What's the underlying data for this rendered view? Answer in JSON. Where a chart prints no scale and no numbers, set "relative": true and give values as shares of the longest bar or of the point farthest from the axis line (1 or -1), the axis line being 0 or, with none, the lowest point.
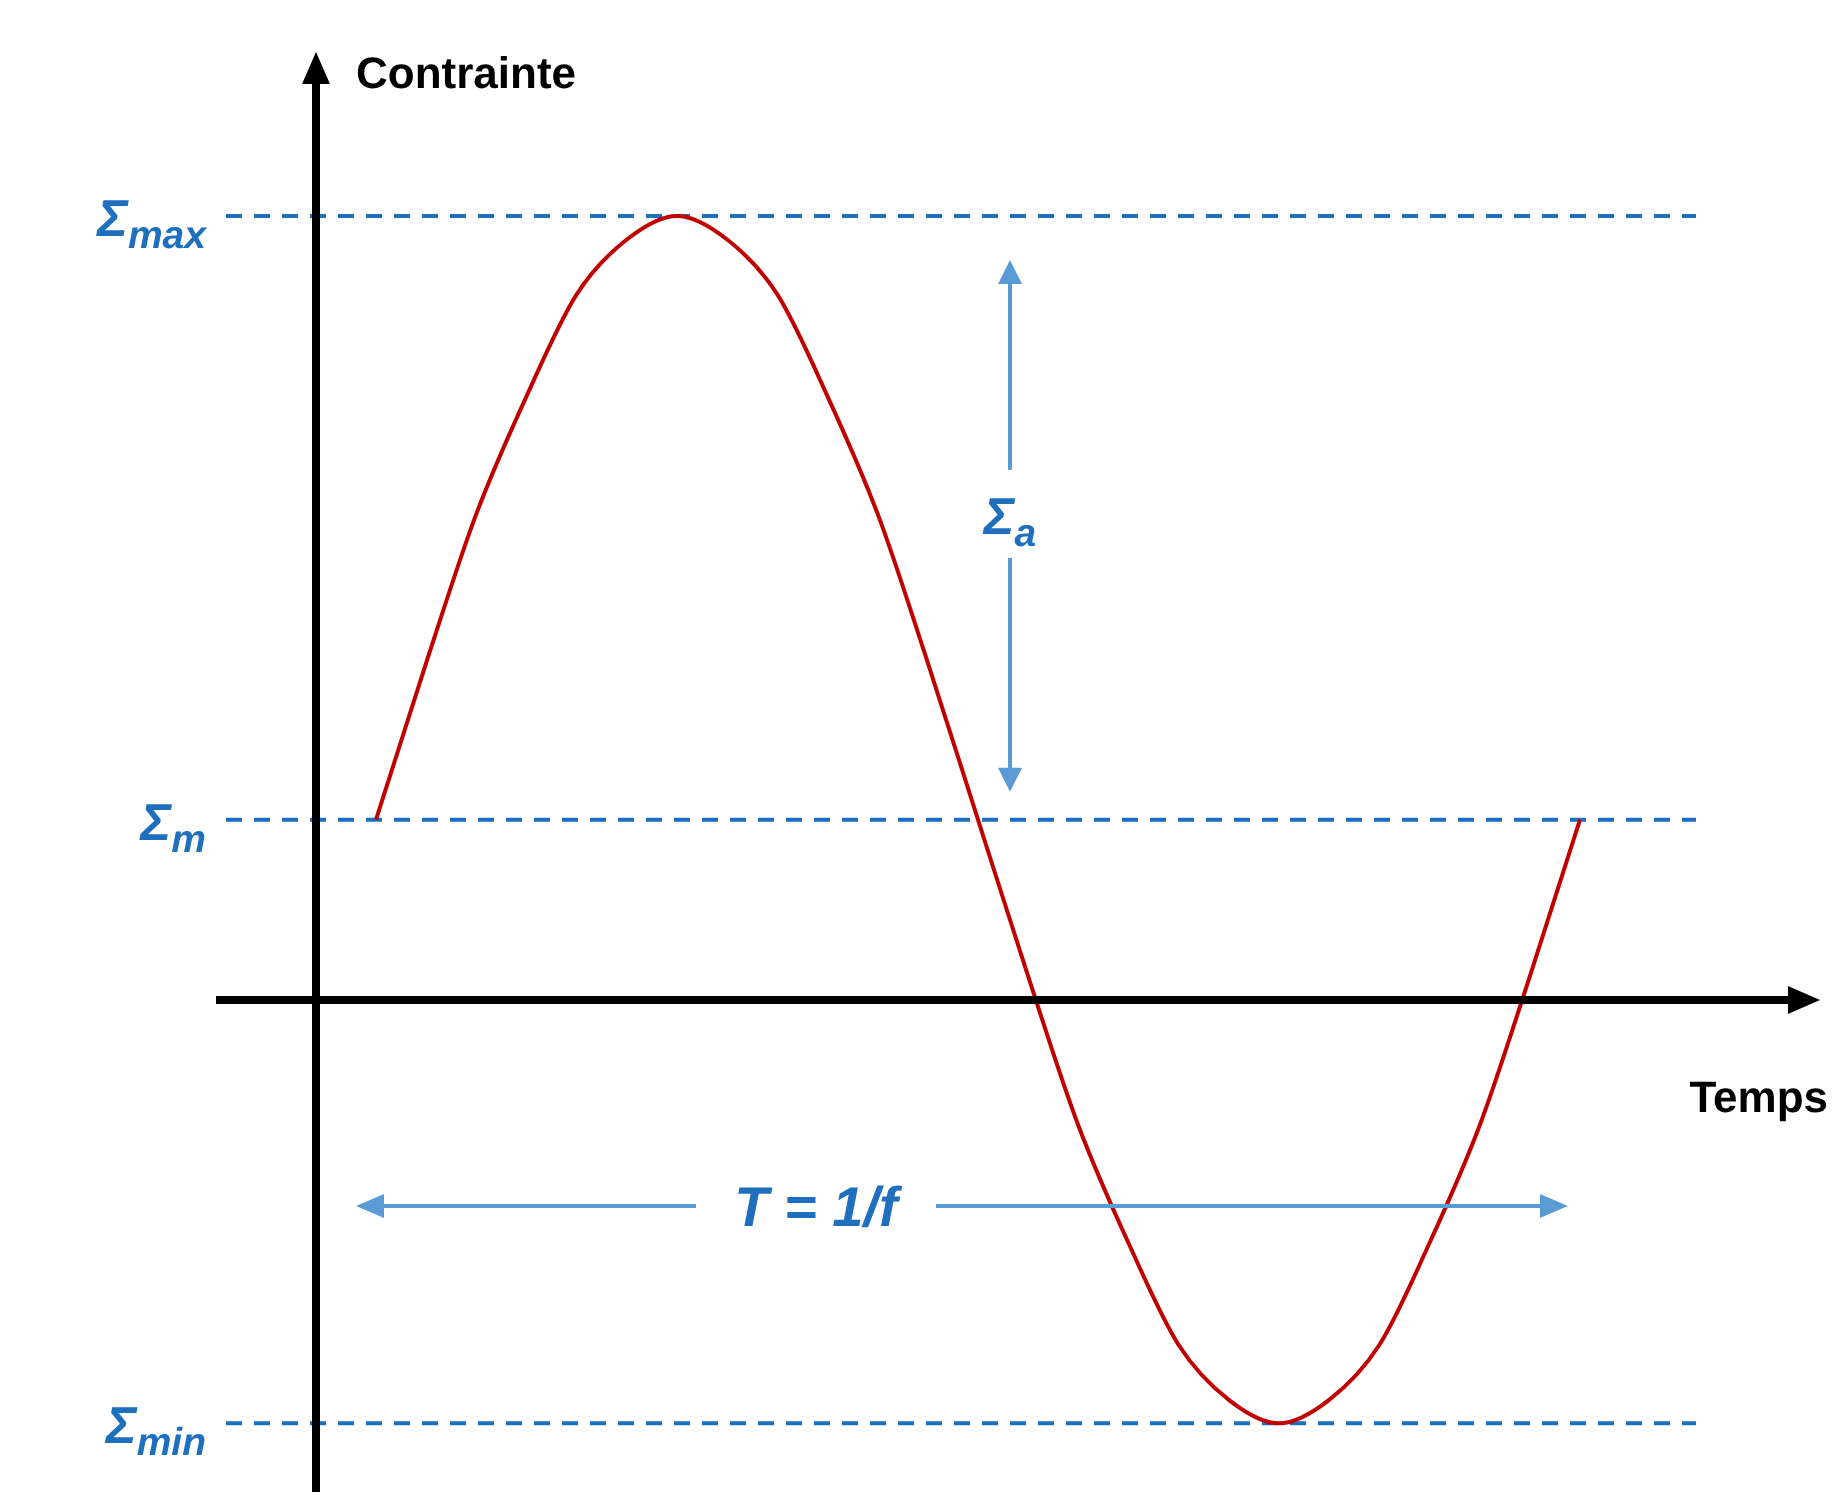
{
  "chart_data": {
    "type": "line",
    "relative": true,
    "xlabel": "Temps",
    "ylabel": "Contrainte",
    "categories": [
      null,
      null,
      null,
      null,
      null,
      null,
      null,
      null,
      null,
      null,
      null,
      null,
      null,
      null,
      null,
      null,
      null,
      null,
      null,
      null,
      null,
      null,
      null,
      null,
      null
    ],
    "series": [
      {
        "color": "#c00000",
        "values": [
          0.23,
          0.43,
          0.62,
          0.77,
          0.9,
          0.97,
          1.0,
          0.97,
          0.9,
          0.77,
          0.62,
          0.43,
          0.23,
          0.03,
          -0.16,
          -0.31,
          -0.44,
          -0.51,
          -0.54,
          -0.51,
          -0.44,
          -0.31,
          -0.16,
          0.03,
          0.23
        ]
      }
    ],
    "ref_lines": [
      {
        "axis": "y",
        "value": 1.0,
        "label": "Σ$_{max}$",
        "color": "#1f6fbf",
        "line_style": "dashed"
      },
      {
        "axis": "y",
        "value": 0.23,
        "label": "Σ$_{m}$",
        "color": "#1f6fbf",
        "line_style": "dashed"
      },
      {
        "axis": "y",
        "value": -0.54,
        "label": "Σ$_{min}$",
        "color": "#1f6fbf",
        "line_style": "dashed"
      }
    ],
    "annotations": [
      "Σ$_{a}$",
      "T = 1/f"
    ],
    "line_style": "solid"
  }
}
